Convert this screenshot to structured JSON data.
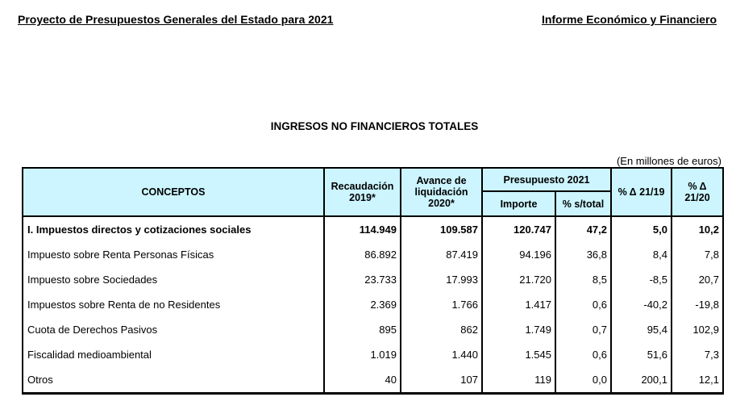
{
  "header": {
    "left": "Proyecto de Presupuestos Generales del Estado para 2021",
    "right": "Informe Económico y Financiero"
  },
  "title": "INGRESOS NO FINANCIEROS TOTALES",
  "unit": "(En millones de euros)",
  "columns": {
    "conceptos": "CONCEPTOS",
    "rec": "Recaudación 2019*",
    "avance": "Avance de liquidación 2020*",
    "pres": "Presupuesto 2021",
    "importe": "Importe",
    "pct": "% s/total",
    "d1919": "% Δ 21/19",
    "d2120": "% Δ 21/20"
  },
  "rows": [
    {
      "c": "I. Impuestos directos y cotizaciones sociales",
      "r": "114.949",
      "a": "109.587",
      "i": "120.747",
      "p": "47,2",
      "d1": "5,0",
      "d2": "10,2"
    },
    {
      "c": "Impuesto sobre Renta Personas Físicas",
      "r": "86.892",
      "a": "87.419",
      "i": "94.196",
      "p": "36,8",
      "d1": "8,4",
      "d2": "7,8"
    },
    {
      "c": "Impuesto sobre Sociedades",
      "r": "23.733",
      "a": "17.993",
      "i": "21.720",
      "p": "8,5",
      "d1": "-8,5",
      "d2": "20,7"
    },
    {
      "c": "Impuestos sobre Renta de no Residentes",
      "r": "2.369",
      "a": "1.766",
      "i": "1.417",
      "p": "0,6",
      "d1": "-40,2",
      "d2": "-19,8"
    },
    {
      "c": "Cuota de Derechos Pasivos",
      "r": "895",
      "a": "862",
      "i": "1.749",
      "p": "0,7",
      "d1": "95,4",
      "d2": "102,9"
    },
    {
      "c": "Fiscalidad medioambiental",
      "r": "1.019",
      "a": "1.440",
      "i": "1.545",
      "p": "0,6",
      "d1": "51,6",
      "d2": "7,3"
    },
    {
      "c": "Otros",
      "r": "40",
      "a": "107",
      "i": "119",
      "p": "0,0",
      "d1": "200,1",
      "d2": "12,1"
    }
  ]
}
